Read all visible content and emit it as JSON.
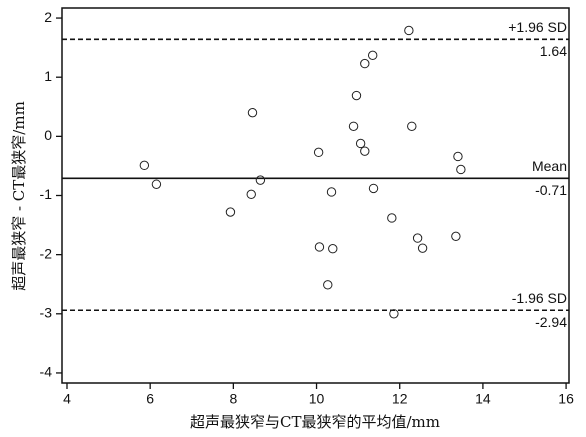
{
  "chart_data": {
    "type": "scatter",
    "x_label": "超声最狭窄与CT最狭窄的平均值/mm",
    "y_label": "超声最狭窄 - CT最狭窄/mm",
    "xlim": [
      3.88,
      16.07
    ],
    "ylim": [
      -4.17,
      2.17
    ],
    "xticks": [
      4,
      6,
      8,
      10,
      12,
      14,
      16
    ],
    "yticks": [
      -4,
      -3,
      -2,
      -1,
      0,
      1,
      2
    ],
    "marker": "open-circle",
    "color": "#222",
    "x": [
      5.86,
      6.15,
      7.93,
      8.46,
      8.43,
      8.65,
      10.05,
      10.07,
      10.36,
      10.39,
      10.27,
      10.96,
      10.89,
      11.06,
      11.16,
      11.16,
      11.35,
      11.37,
      11.81,
      12.22,
      12.29,
      12.43,
      12.55,
      11.86,
      13.4,
      13.47,
      13.35
    ],
    "values": [
      -0.49,
      -0.81,
      -1.28,
      0.4,
      -0.98,
      -0.74,
      -0.27,
      -1.87,
      -0.94,
      -1.9,
      -2.51,
      0.69,
      0.17,
      -0.12,
      -0.25,
      1.23,
      1.37,
      -0.88,
      -1.38,
      1.79,
      0.17,
      -1.72,
      -1.89,
      -3.0,
      -0.34,
      -0.56,
      -1.69
    ],
    "reference_lines": [
      {
        "name": "+1.96 SD",
        "value": 1.64,
        "style": "dashed"
      },
      {
        "name": "Mean",
        "value": -0.71,
        "style": "solid"
      },
      {
        "name": "-1.96 SD",
        "value": -2.94,
        "style": "dashed"
      }
    ]
  }
}
